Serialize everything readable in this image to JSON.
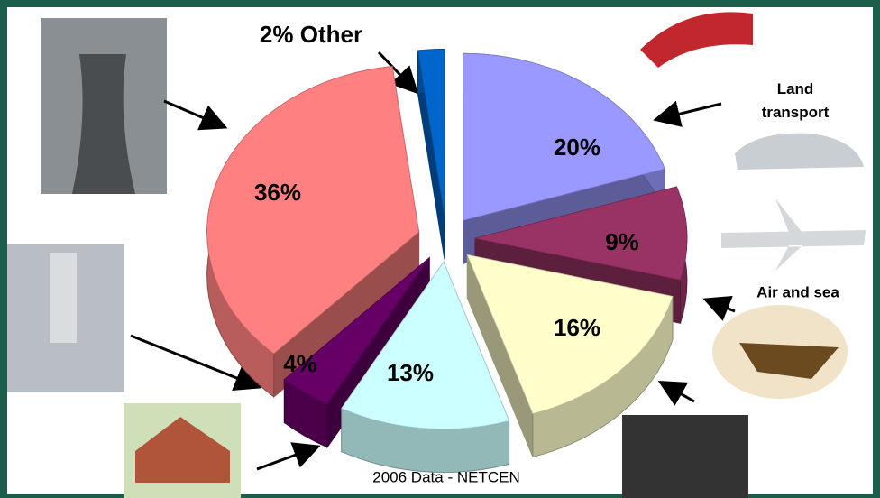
{
  "chart_data": {
    "type": "pie",
    "categories": [
      null,
      null,
      null,
      null,
      null,
      null,
      "Other"
    ],
    "values": [
      20,
      9,
      16,
      13,
      4,
      36,
      2
    ],
    "value_labels": [
      "20%",
      "9%",
      "16%",
      "13%",
      "4%",
      "36%",
      "2%"
    ],
    "colors": [
      "#9999ff",
      "#993366",
      "#ffffcc",
      "#ccffff",
      "#660066",
      "#ff8080",
      "#0066cc"
    ],
    "annotations": [
      "Land transport",
      "Air and sea"
    ],
    "source": "2006 Data - NETCEN"
  }
}
